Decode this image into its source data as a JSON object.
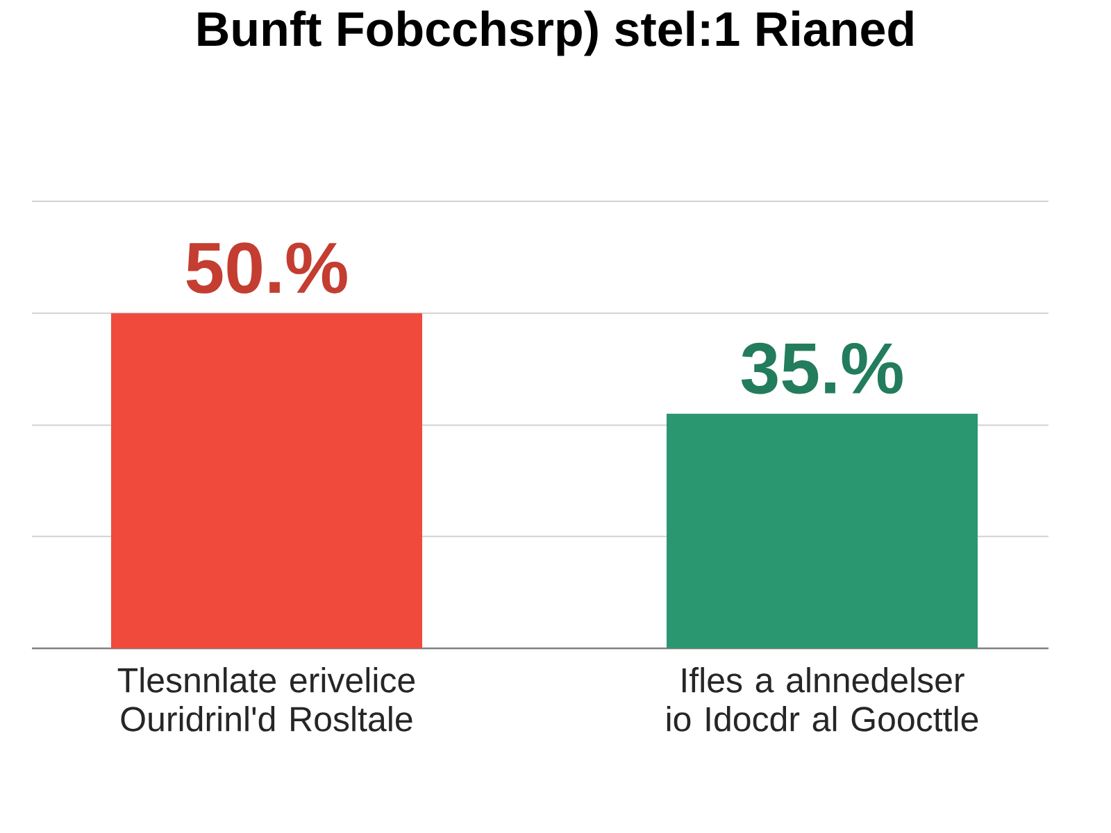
{
  "chart_data": {
    "type": "bar",
    "title": "Bunft Fobcchsrp) stel:1 Rianed",
    "categories": [
      "Tlesnnlate erivelice Ouridrinl'd Rosltale",
      "Ifles a alnnedelser io Idocdr al Goocttle"
    ],
    "values": [
      50,
      35
    ],
    "colors": [
      "#ef4a3c",
      "#2b9770"
    ],
    "value_labels": [
      "50.%",
      "35.%"
    ],
    "ylim": [
      0,
      66.7
    ],
    "yticks": [
      {
        "value": 0,
        "label": null
      },
      {
        "value": 16.7,
        "label": null
      },
      {
        "value": 33.3,
        "label": null
      },
      {
        "value": 50,
        "label": null
      },
      {
        "value": 66.7,
        "label": null
      }
    ],
    "grid": "y",
    "tick_labels": "x"
  }
}
